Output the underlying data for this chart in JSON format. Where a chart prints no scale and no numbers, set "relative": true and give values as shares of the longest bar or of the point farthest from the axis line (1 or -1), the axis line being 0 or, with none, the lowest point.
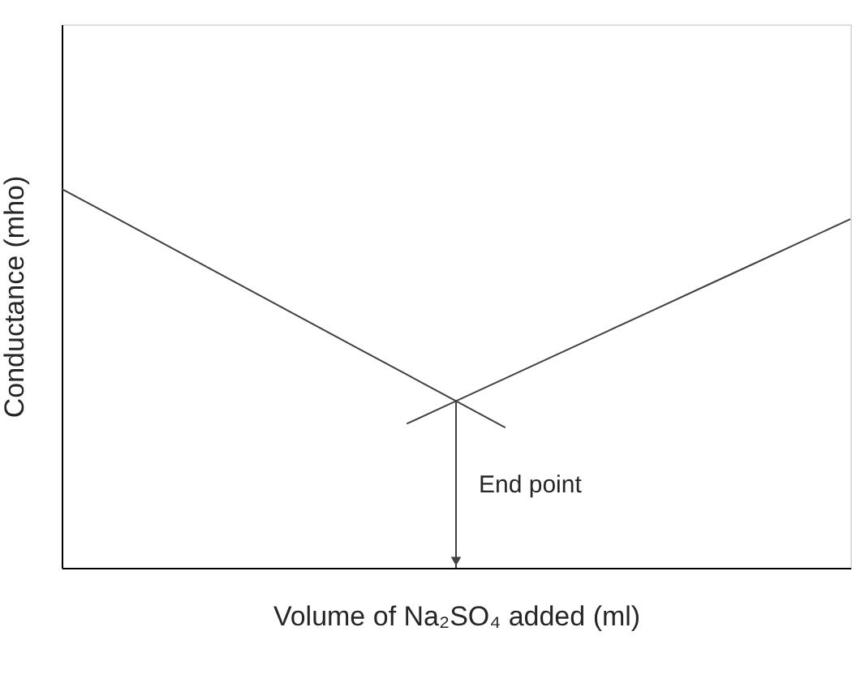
{
  "chart_data": {
    "type": "line",
    "relative": true,
    "xlabel": "Volume of Na₂SO₄ added (ml)",
    "ylabel": "Conductance (mho)",
    "categories": [
      null,
      null,
      null,
      null,
      null,
      null,
      null,
      null,
      null,
      null,
      null,
      null,
      null,
      null,
      null,
      null,
      null
    ],
    "marker": "none",
    "line_style": "solid",
    "series": [
      {
        "color": "#404040",
        "values": [
          1,
          0.93,
          0.86,
          0.79,
          0.72,
          0.65,
          0.58,
          0.51,
          0.44,
          0.37,
          null,
          null,
          null,
          null,
          null,
          null,
          null
        ]
      },
      {
        "color": "#404040",
        "values": [
          null,
          null,
          null,
          null,
          null,
          null,
          null,
          0.38,
          0.44,
          0.5,
          0.56,
          0.62,
          0.68,
          0.74,
          0.8,
          0.86,
          0.92
        ]
      }
    ],
    "annotations": [
      "End point"
    ]
  }
}
